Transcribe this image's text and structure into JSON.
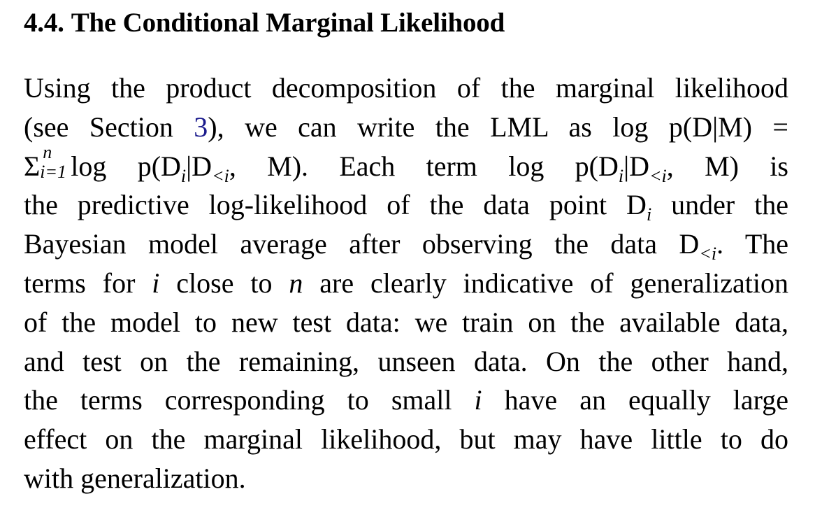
{
  "section": {
    "number": "4.4.",
    "title": "The Conditional Marginal Likelihood"
  },
  "body": {
    "l1": "Using the product decomposition of the marginal likelihood",
    "l2_a": "(see Section ",
    "l2_ref": "3",
    "l2_b": "), we can write the LML as log p(D|M) =",
    "l3_sum": "Σ",
    "l3_sup": "n",
    "l3_sub": "i=1",
    "l3_a": "log p(D",
    "l3_b": "|D",
    "l3_c": ", M). Each term log p(D",
    "l3_d": "|D",
    "l3_e": ", M) is",
    "sub_i": "i",
    "sub_lt_i": "<i",
    "l4_a": "the predictive log-likelihood of the data point D",
    "l4_b": " under the",
    "l5_a": "Bayesian model average after observing the data D",
    "l5_b": ". The",
    "l6_a": "terms for ",
    "l6_i": "i",
    "l6_b": " close to ",
    "l6_n": "n",
    "l6_c": " are clearly indicative of generalization",
    "l7": "of the model to new test data: we train on the available data,",
    "l8": "and test on the remaining, unseen data. On the other hand,",
    "l9_a": "the terms corresponding to small ",
    "l9_i": "i",
    "l9_b": " have an equally large",
    "l10": "effect on the marginal likelihood, but may have little to do",
    "l11": "with generalization."
  },
  "colors": {
    "text": "#000000",
    "reference_link": "#1a1a8c",
    "background": "#ffffff"
  }
}
